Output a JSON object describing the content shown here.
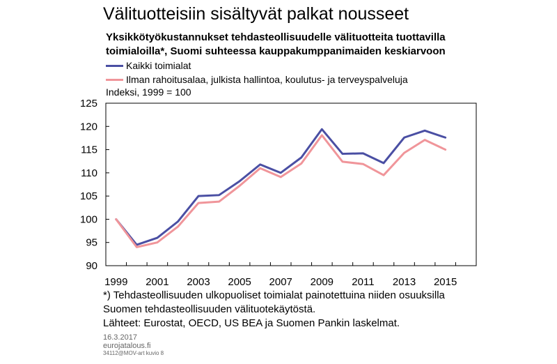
{
  "title": "Välituotteisiin sisältyvät palkat nousseet",
  "subtitle_lines": [
    "Yksikkötyökustannukset tehdasteollisuudelle välituotteita tuottavilla",
    "toimialoilla*,  Suomi suhteessa kauppakumppanimaiden keskiarvoon"
  ],
  "unit": "Indeksi, 1999 = 100",
  "notes": [
    "*) Tehdasteollisuuden ulkopuoliset toimialat painotettuina niiden osuuksilla",
    "Suomen tehdasteollisuuden välituotekäytöstä.",
    "Lähteet: Eurostat, OECD, US BEA ja Suomen Pankin laskelmat."
  ],
  "footer": {
    "date": "16.3.2017",
    "site": "eurojatalous.fi",
    "code": "34112@MOV-art  kuvio 8"
  },
  "chart_data": {
    "type": "line",
    "x": [
      1999,
      2000,
      2001,
      2002,
      2003,
      2004,
      2005,
      2006,
      2007,
      2008,
      2009,
      2010,
      2011,
      2012,
      2013,
      2014,
      2015
    ],
    "series": [
      {
        "name": "Kaikki toimialat",
        "color": "#4a4fa3",
        "values": [
          100,
          94.5,
          96,
          99.5,
          105,
          105.2,
          108.2,
          111.8,
          110,
          113.3,
          119.4,
          114.1,
          114.2,
          112.1,
          117.6,
          119.1,
          117.6
        ]
      },
      {
        "name": "Ilman rahoitusalaa, julkista hallintoa, koulutus- ja terveyspalveluja",
        "color": "#f0959a",
        "values": [
          100,
          94,
          95,
          98.4,
          103.5,
          103.8,
          107.2,
          111,
          109.1,
          112,
          118.1,
          112.4,
          111.9,
          109.5,
          114.3,
          117.1,
          115
        ]
      }
    ],
    "ylim": [
      90,
      125
    ],
    "yticks": [
      90,
      95,
      100,
      105,
      110,
      115,
      120,
      125
    ],
    "xticks": [
      1999,
      2001,
      2003,
      2005,
      2007,
      2009,
      2011,
      2013,
      2015
    ],
    "xlim": [
      1998.5,
      2016.5
    ],
    "grid": false
  }
}
